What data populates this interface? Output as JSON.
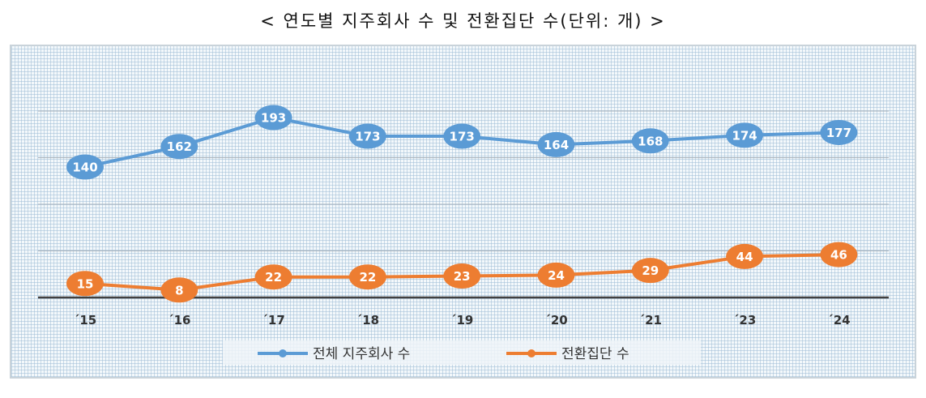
{
  "chart_data": {
    "type": "line",
    "title": "< 연도별 지주회사 수 및 전환집단 수(단위: 개) >",
    "categories": [
      "´15",
      "´16",
      "´17",
      "´18",
      "´19",
      "´20",
      "´21",
      "´23",
      "´24"
    ],
    "series": [
      {
        "name": "전체 지주회사 수",
        "color": "#5b9bd5",
        "values": [
          140,
          162,
          193,
          173,
          173,
          164,
          168,
          174,
          177
        ]
      },
      {
        "name": "전환집단 수",
        "color": "#ed7d31",
        "values": [
          15,
          8,
          22,
          22,
          23,
          24,
          29,
          44,
          46
        ]
      }
    ],
    "ylim": [
      0,
      250
    ],
    "gridlines": [
      50,
      100,
      150,
      200
    ],
    "grid": true,
    "legend": "bottom",
    "data_labels": true
  }
}
